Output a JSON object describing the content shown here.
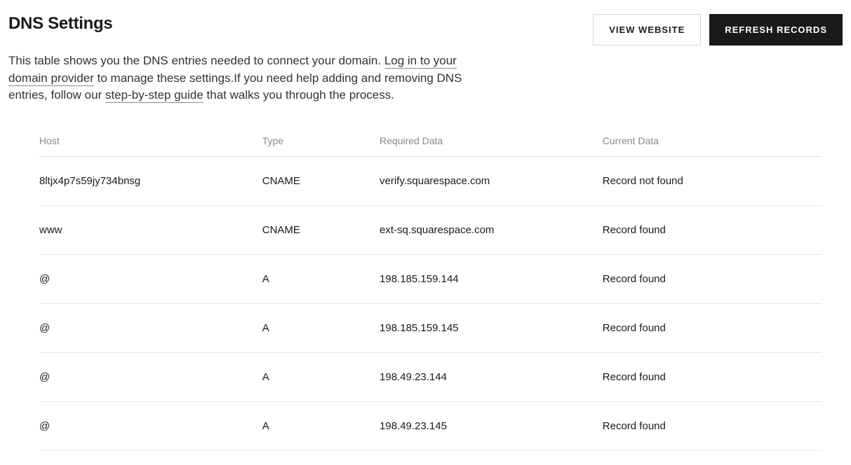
{
  "header": {
    "title": "DNS Settings",
    "view_website_label": "VIEW WEBSITE",
    "refresh_records_label": "REFRESH RECORDS"
  },
  "description": {
    "text_1": "This table shows you the DNS entries needed to connect your domain. ",
    "link_1": "Log in to your domain provider",
    "text_2": " to manage these settings.If you need help adding and removing DNS entries, follow our ",
    "link_2": "step-by-step guide",
    "text_3": " that walks you through the process."
  },
  "table": {
    "columns": {
      "host": "Host",
      "type": "Type",
      "required": "Required Data",
      "current": "Current Data"
    },
    "rows": [
      {
        "host": "8ltjx4p7s59jy734bnsg",
        "type": "CNAME",
        "required": "verify.squarespace.com",
        "current": "Record not found",
        "status": "notfound"
      },
      {
        "host": "www",
        "type": "CNAME",
        "required": "ext-sq.squarespace.com",
        "current": "Record found",
        "status": "found"
      },
      {
        "host": "@",
        "type": "A",
        "required": "198.185.159.144",
        "current": "Record found",
        "status": "found"
      },
      {
        "host": "@",
        "type": "A",
        "required": "198.185.159.145",
        "current": "Record found",
        "status": "found"
      },
      {
        "host": "@",
        "type": "A",
        "required": "198.49.23.144",
        "current": "Record found",
        "status": "found"
      },
      {
        "host": "@",
        "type": "A",
        "required": "198.49.23.145",
        "current": "Record found",
        "status": "found"
      }
    ]
  },
  "styling": {
    "background_color": "#ffffff",
    "text_color": "#1a1a1a",
    "muted_text_color": "#888888",
    "border_color": "#e2e2e2",
    "status_found_color": "#0f7b3e",
    "status_notfound_color": "#cc2a2a",
    "btn_outline_border": "#d6d6d6",
    "btn_solid_bg": "#1a1a1a",
    "title_fontsize": 24,
    "desc_fontsize": 17,
    "table_header_fontsize": 14,
    "table_cell_fontsize": 15
  }
}
